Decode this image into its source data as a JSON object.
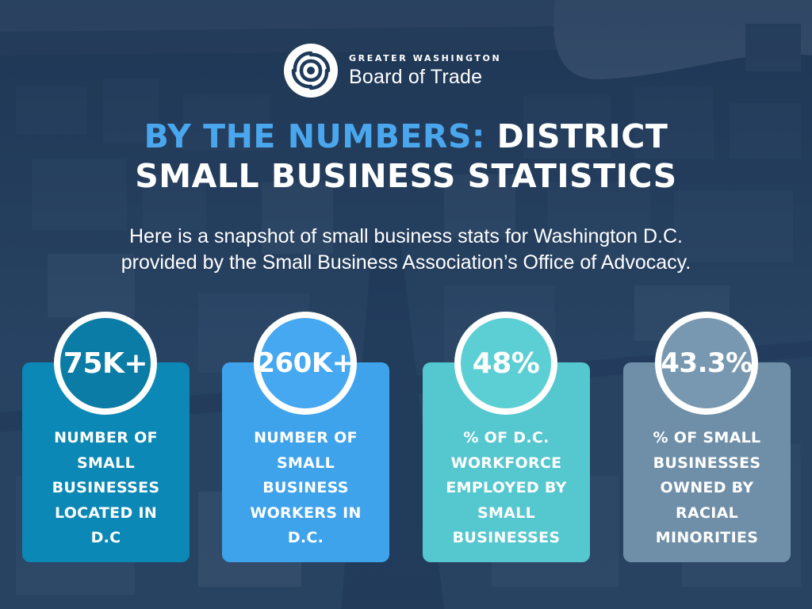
{
  "logo": {
    "top_line": "GREATER WASHINGTON",
    "bottom_line": "Board of Trade",
    "icon": "swirl-logo-icon"
  },
  "title": {
    "accent": "BY THE NUMBERS:",
    "line1_rest": "DISTRICT",
    "line2": "SMALL BUSINESS STATISTICS"
  },
  "subtitle": {
    "line1": "Here is a snapshot of small business stats for Washington D.C.",
    "line2": "provided by the Small Business Association’s Office of Advocacy."
  },
  "stats": [
    {
      "value": "75K+",
      "label": [
        "NUMBER OF",
        "SMALL",
        "BUSINESSES",
        "LOCATED IN",
        "D.C"
      ],
      "card_color": "#0b88b6",
      "circle_color": "#0a7ca6"
    },
    {
      "value": "260K+",
      "label": [
        "NUMBER OF",
        "SMALL",
        "BUSINESS",
        "WORKERS IN",
        "D.C."
      ],
      "card_color": "#3fa3ec",
      "circle_color": "#45a8f0"
    },
    {
      "value": "48%",
      "label": [
        "% OF D.C.",
        "WORKFORCE",
        "EMPLOYED BY",
        "SMALL",
        "BUSINESSES"
      ],
      "card_color": "#55c7cf",
      "circle_color": "#5ccfd5"
    },
    {
      "value": "43.3%",
      "label": [
        "% OF SMALL",
        "BUSINESSES",
        "OWNED BY",
        "RACIAL",
        "MINORITIES"
      ],
      "card_color": "#6f8fa9",
      "circle_color": "#7898b2"
    }
  ],
  "colors": {
    "accent": "#4aa7ee",
    "text": "#ffffff"
  }
}
